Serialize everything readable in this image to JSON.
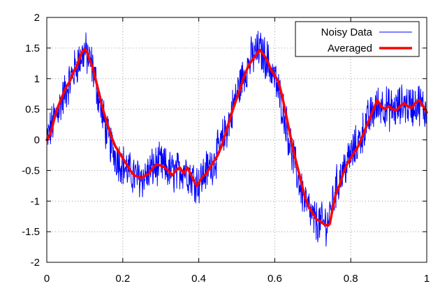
{
  "chart_data": {
    "type": "line",
    "title": "",
    "xlabel": "",
    "ylabel": "",
    "xlim": [
      0,
      1
    ],
    "ylim": [
      -2,
      2
    ],
    "x_ticks": [
      0,
      0.2,
      0.4,
      0.6,
      0.8,
      1
    ],
    "x_tick_labels": [
      "0",
      "0.2",
      "0.4",
      "0.6",
      "0.8",
      "1"
    ],
    "y_ticks": [
      -2,
      -1.5,
      -1,
      -0.5,
      0,
      0.5,
      1,
      1.5,
      2
    ],
    "y_tick_labels": [
      "-2",
      "-1.5",
      "-1",
      "-0.5",
      "0",
      "0.5",
      "1",
      "1.5",
      "2"
    ],
    "grid": true,
    "legend_position": "top-right",
    "series": [
      {
        "name": "Noisy Data",
        "color": "#0000ff",
        "style": "thin-line",
        "points": 1000,
        "noise_amplitude": 0.3,
        "values": [
          [
            0.0,
            0.0
          ],
          [
            0.02,
            0.35
          ],
          [
            0.04,
            0.65
          ],
          [
            0.06,
            0.95
          ],
          [
            0.08,
            1.25
          ],
          [
            0.1,
            1.45
          ],
          [
            0.12,
            1.2
          ],
          [
            0.14,
            0.6
          ],
          [
            0.16,
            0.05
          ],
          [
            0.18,
            -0.25
          ],
          [
            0.2,
            -0.4
          ],
          [
            0.22,
            -0.55
          ],
          [
            0.24,
            -0.62
          ],
          [
            0.26,
            -0.6
          ],
          [
            0.28,
            -0.45
          ],
          [
            0.3,
            -0.4
          ],
          [
            0.32,
            -0.5
          ],
          [
            0.34,
            -0.55
          ],
          [
            0.36,
            -0.45
          ],
          [
            0.38,
            -0.6
          ],
          [
            0.4,
            -0.7
          ],
          [
            0.42,
            -0.5
          ],
          [
            0.44,
            -0.35
          ],
          [
            0.46,
            -0.05
          ],
          [
            0.48,
            0.3
          ],
          [
            0.5,
            0.75
          ],
          [
            0.52,
            1.1
          ],
          [
            0.54,
            1.35
          ],
          [
            0.56,
            1.47
          ],
          [
            0.58,
            1.3
          ],
          [
            0.6,
            1.0
          ],
          [
            0.62,
            0.55
          ],
          [
            0.64,
            -0.05
          ],
          [
            0.66,
            -0.6
          ],
          [
            0.68,
            -1.0
          ],
          [
            0.7,
            -1.3
          ],
          [
            0.72,
            -1.37
          ],
          [
            0.74,
            -1.35
          ],
          [
            0.76,
            -0.8
          ],
          [
            0.78,
            -0.5
          ],
          [
            0.8,
            -0.25
          ],
          [
            0.82,
            -0.05
          ],
          [
            0.84,
            0.25
          ],
          [
            0.86,
            0.48
          ],
          [
            0.88,
            0.6
          ],
          [
            0.9,
            0.5
          ],
          [
            0.92,
            0.5
          ],
          [
            0.94,
            0.6
          ],
          [
            0.96,
            0.55
          ],
          [
            0.98,
            0.6
          ],
          [
            1.0,
            0.45
          ]
        ]
      },
      {
        "name": "Averaged",
        "color": "#ff0000",
        "style": "thick-line",
        "values": [
          [
            0.0,
            0.0
          ],
          [
            0.01,
            0.1
          ],
          [
            0.02,
            0.35
          ],
          [
            0.03,
            0.55
          ],
          [
            0.04,
            0.7
          ],
          [
            0.05,
            0.85
          ],
          [
            0.06,
            0.95
          ],
          [
            0.07,
            1.1
          ],
          [
            0.08,
            1.22
          ],
          [
            0.09,
            1.4
          ],
          [
            0.095,
            1.45
          ],
          [
            0.1,
            1.48
          ],
          [
            0.105,
            1.45
          ],
          [
            0.11,
            1.35
          ],
          [
            0.12,
            1.2
          ],
          [
            0.13,
            0.95
          ],
          [
            0.14,
            0.7
          ],
          [
            0.15,
            0.45
          ],
          [
            0.16,
            0.25
          ],
          [
            0.17,
            0.05
          ],
          [
            0.18,
            -0.1
          ],
          [
            0.19,
            -0.2
          ],
          [
            0.2,
            -0.3
          ],
          [
            0.21,
            -0.4
          ],
          [
            0.22,
            -0.5
          ],
          [
            0.23,
            -0.58
          ],
          [
            0.24,
            -0.6
          ],
          [
            0.25,
            -0.62
          ],
          [
            0.26,
            -0.58
          ],
          [
            0.27,
            -0.55
          ],
          [
            0.28,
            -0.45
          ],
          [
            0.29,
            -0.4
          ],
          [
            0.3,
            -0.42
          ],
          [
            0.31,
            -0.45
          ],
          [
            0.32,
            -0.5
          ],
          [
            0.33,
            -0.58
          ],
          [
            0.34,
            -0.5
          ],
          [
            0.35,
            -0.45
          ],
          [
            0.36,
            -0.55
          ],
          [
            0.37,
            -0.45
          ],
          [
            0.38,
            -0.58
          ],
          [
            0.39,
            -0.7
          ],
          [
            0.395,
            -0.75
          ],
          [
            0.4,
            -0.7
          ],
          [
            0.41,
            -0.6
          ],
          [
            0.42,
            -0.55
          ],
          [
            0.43,
            -0.45
          ],
          [
            0.44,
            -0.35
          ],
          [
            0.45,
            -0.25
          ],
          [
            0.46,
            -0.1
          ],
          [
            0.47,
            0.1
          ],
          [
            0.48,
            0.3
          ],
          [
            0.49,
            0.5
          ],
          [
            0.5,
            0.68
          ],
          [
            0.51,
            0.85
          ],
          [
            0.52,
            1.05
          ],
          [
            0.53,
            1.2
          ],
          [
            0.54,
            1.3
          ],
          [
            0.55,
            1.38
          ],
          [
            0.56,
            1.47
          ],
          [
            0.57,
            1.4
          ],
          [
            0.58,
            1.3
          ],
          [
            0.59,
            1.15
          ],
          [
            0.6,
            1.05
          ],
          [
            0.61,
            0.95
          ],
          [
            0.62,
            0.7
          ],
          [
            0.63,
            0.4
          ],
          [
            0.64,
            0.1
          ],
          [
            0.65,
            -0.2
          ],
          [
            0.66,
            -0.45
          ],
          [
            0.67,
            -0.7
          ],
          [
            0.68,
            -0.95
          ],
          [
            0.69,
            -1.1
          ],
          [
            0.7,
            -1.2
          ],
          [
            0.71,
            -1.3
          ],
          [
            0.72,
            -1.33
          ],
          [
            0.73,
            -1.38
          ],
          [
            0.74,
            -1.4
          ],
          [
            0.745,
            -1.37
          ],
          [
            0.75,
            -1.2
          ],
          [
            0.76,
            -0.9
          ],
          [
            0.77,
            -0.75
          ],
          [
            0.78,
            -0.55
          ],
          [
            0.79,
            -0.4
          ],
          [
            0.8,
            -0.3
          ],
          [
            0.81,
            -0.2
          ],
          [
            0.82,
            -0.1
          ],
          [
            0.83,
            0.05
          ],
          [
            0.84,
            0.2
          ],
          [
            0.85,
            0.35
          ],
          [
            0.86,
            0.5
          ],
          [
            0.87,
            0.65
          ],
          [
            0.88,
            0.55
          ],
          [
            0.89,
            0.5
          ],
          [
            0.9,
            0.55
          ],
          [
            0.91,
            0.5
          ],
          [
            0.92,
            0.48
          ],
          [
            0.93,
            0.55
          ],
          [
            0.94,
            0.6
          ],
          [
            0.95,
            0.55
          ],
          [
            0.96,
            0.52
          ],
          [
            0.97,
            0.6
          ],
          [
            0.98,
            0.65
          ],
          [
            0.99,
            0.55
          ],
          [
            1.0,
            0.45
          ]
        ]
      }
    ]
  }
}
